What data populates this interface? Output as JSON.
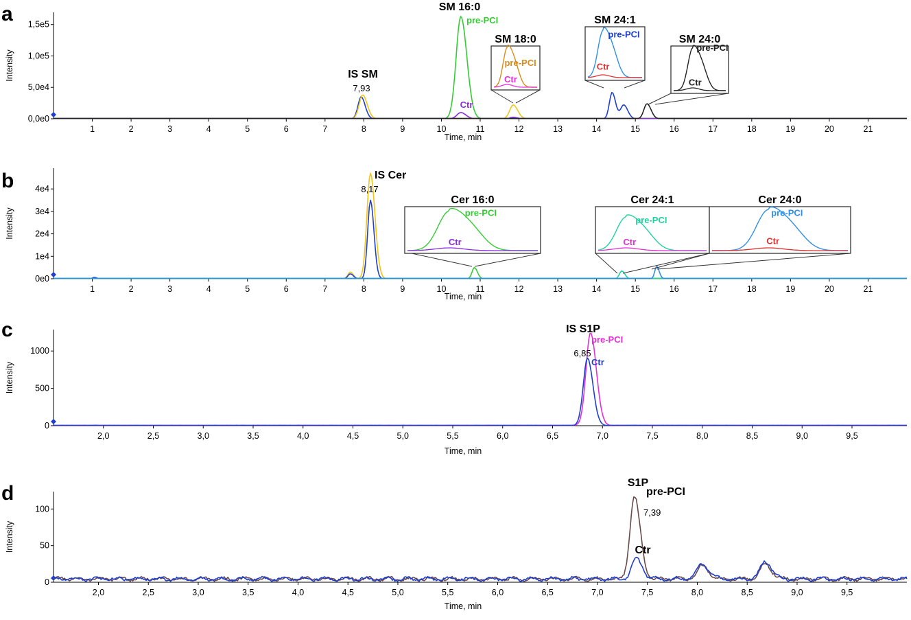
{
  "colors": {
    "blue": "#1f3fd0",
    "green": "#33cc33",
    "yellow": "#f0c419",
    "purple": "#8a2be2",
    "orange": "#d98c1a",
    "pink": "#e52fd5",
    "red": "#e03030",
    "sky": "#2e8fe8",
    "mint": "#22d1a0",
    "black": "#222222",
    "brown": "#6b4a4a"
  },
  "chart_data": [
    {
      "type": "line",
      "panel": "a",
      "xlabel": "Time, min",
      "ylabel": "Intensity",
      "xlim": [
        0,
        22
      ],
      "ylim": [
        0,
        165000
      ],
      "xticks": [
        "1",
        "2",
        "3",
        "4",
        "5",
        "6",
        "7",
        "8",
        "9",
        "10",
        "11",
        "12",
        "13",
        "14",
        "15",
        "16",
        "17",
        "18",
        "19",
        "20",
        "21"
      ],
      "yticks": [
        {
          "v": 0,
          "label": "0,0e0"
        },
        {
          "v": 50000,
          "label": "5,0e4"
        },
        {
          "v": 100000,
          "label": "1,0e5"
        },
        {
          "v": 150000,
          "label": "1,5e5"
        }
      ],
      "annotations": [
        {
          "text": "IS SM",
          "x": 7.93,
          "kind": "peak"
        },
        {
          "text": "7,93",
          "x": 7.93,
          "kind": "rt"
        },
        {
          "text": "SM 16:0",
          "x": 10.5,
          "kind": "peak"
        },
        {
          "text": "pre-PCI",
          "x": 10.5,
          "kind": "green"
        },
        {
          "text": "Ctr",
          "x": 10.5,
          "kind": "purple"
        },
        {
          "text": "SM 18:0",
          "x": 11.85,
          "kind": "peak"
        },
        {
          "text": "SM 24:1",
          "x": 14.5,
          "kind": "peak"
        },
        {
          "text": "SM 24:0",
          "x": 15.3,
          "kind": "peak"
        }
      ],
      "insets": [
        {
          "title": "SM 18:0",
          "labels": [
            "pre-PCI",
            "Ctr"
          ]
        },
        {
          "title": "SM 24:1",
          "labels": [
            "pre-PCI",
            "Ctr"
          ]
        },
        {
          "title": "SM 24:0",
          "labels": [
            "pre-PCI",
            "Ctr"
          ]
        }
      ],
      "series": [
        {
          "color": "blue",
          "peaks": [
            [
              7.93,
              35000,
              0.08
            ],
            [
              14.4,
              42000,
              0.07
            ],
            [
              14.7,
              22000,
              0.08
            ]
          ]
        },
        {
          "color": "yellow",
          "peaks": [
            [
              7.97,
              38000,
              0.09
            ],
            [
              11.85,
              22000,
              0.09
            ]
          ]
        },
        {
          "color": "green",
          "peaks": [
            [
              10.5,
              163000,
              0.12
            ]
          ]
        },
        {
          "color": "purple",
          "peaks": [
            [
              10.5,
              10000,
              0.1
            ],
            [
              11.85,
              2500,
              0.08
            ]
          ]
        },
        {
          "color": "black",
          "peaks": [
            [
              15.3,
              24000,
              0.08
            ]
          ]
        }
      ]
    },
    {
      "type": "line",
      "panel": "b",
      "xlabel": "Time, min",
      "ylabel": "Intensity",
      "xlim": [
        0,
        22
      ],
      "ylim": [
        0,
        48000
      ],
      "xticks": [
        "1",
        "2",
        "3",
        "4",
        "5",
        "6",
        "7",
        "8",
        "9",
        "10",
        "11",
        "12",
        "13",
        "14",
        "15",
        "16",
        "17",
        "18",
        "19",
        "20",
        "21"
      ],
      "yticks": [
        {
          "v": 0,
          "label": "0e0"
        },
        {
          "v": 10000,
          "label": "1e4"
        },
        {
          "v": 20000,
          "label": "2e4"
        },
        {
          "v": 30000,
          "label": "3e4"
        },
        {
          "v": 40000,
          "label": "4e4"
        }
      ],
      "annotations": [
        {
          "text": "IS Cer",
          "x": 8.17,
          "kind": "peak"
        },
        {
          "text": "8,17",
          "x": 8.17,
          "kind": "rt"
        }
      ],
      "insets": [
        {
          "title": "Cer 16:0",
          "labels": [
            "pre-PCI",
            "Ctr"
          ]
        },
        {
          "title": "Cer 24:1",
          "labels": [
            "pre-PCI",
            "Ctr"
          ]
        },
        {
          "title": "Cer 24:0",
          "labels": [
            "pre-PCI",
            "Ctr"
          ]
        }
      ],
      "series": [
        {
          "color": "yellow",
          "peaks": [
            [
              8.17,
              47000,
              0.09
            ],
            [
              7.65,
              3000,
              0.06
            ]
          ]
        },
        {
          "color": "blue",
          "peaks": [
            [
              8.17,
              35000,
              0.07
            ],
            [
              7.65,
              2200,
              0.06
            ],
            [
              1.05,
              600,
              0.05
            ]
          ]
        },
        {
          "color": "green",
          "peaks": [
            [
              10.85,
              5000,
              0.06
            ]
          ]
        },
        {
          "color": "mint",
          "peaks": [
            [
              14.65,
              3500,
              0.06
            ]
          ]
        },
        {
          "color": "sky",
          "peaks": [
            [
              15.55,
              5500,
              0.05
            ]
          ]
        }
      ]
    },
    {
      "type": "line",
      "panel": "c",
      "xlabel": "Time, min",
      "ylabel": "Intensity",
      "xlim": [
        1.5,
        10.05
      ],
      "ylim": [
        0,
        1250
      ],
      "xticks": [
        "2,0",
        "2,5",
        "3,0",
        "3,5",
        "4,0",
        "4,5",
        "5,0",
        "5,5",
        "6,0",
        "6,5",
        "7,0",
        "7,5",
        "8,0",
        "8,5",
        "9,0",
        "9,5"
      ],
      "yticks": [
        {
          "v": 0,
          "label": "0"
        },
        {
          "v": 500,
          "label": "500"
        },
        {
          "v": 1000,
          "label": "1000"
        }
      ],
      "annotations": [
        {
          "text": "IS S1P",
          "x": 6.85,
          "kind": "peak"
        },
        {
          "text": "6,85",
          "x": 6.85,
          "kind": "rt"
        },
        {
          "text": "pre-PCI",
          "x": 6.88,
          "kind": "pink"
        },
        {
          "text": "Ctr",
          "x": 6.85,
          "kind": "blue"
        }
      ],
      "series": [
        {
          "color": "pink",
          "peaks": [
            [
              6.88,
              1240,
              0.045
            ]
          ]
        },
        {
          "color": "blue",
          "peaks": [
            [
              6.85,
              900,
              0.042
            ]
          ]
        }
      ]
    },
    {
      "type": "line",
      "panel": "d",
      "xlabel": "Time, min",
      "ylabel": "Intensity",
      "xlim": [
        1.55,
        10.1
      ],
      "ylim": [
        0,
        120
      ],
      "xticks": [
        "2,0",
        "2,5",
        "3,0",
        "3,5",
        "4,0",
        "4,5",
        "5,0",
        "5,5",
        "6,0",
        "6,5",
        "7,0",
        "7,5",
        "8,0",
        "8,5",
        "9,0",
        "9,5"
      ],
      "yticks": [
        {
          "v": 0,
          "label": "0"
        },
        {
          "v": 50,
          "label": "50"
        },
        {
          "v": 100,
          "label": "100"
        }
      ],
      "annotations": [
        {
          "text": "S1P",
          "x": 7.39,
          "kind": "peak"
        },
        {
          "text": "pre-PCI",
          "x": 7.39,
          "kind": "brown"
        },
        {
          "text": "7,39",
          "x": 7.39,
          "kind": "rt"
        },
        {
          "text": "Ctr",
          "x": 7.39,
          "kind": "sky"
        }
      ],
      "series": [
        {
          "color": "brown",
          "peaks": [
            [
              7.37,
              112,
              0.045
            ],
            [
              8.05,
              18,
              0.05
            ],
            [
              8.68,
              20,
              0.05
            ]
          ]
        },
        {
          "color": "blue",
          "peaks": [
            [
              7.39,
              28,
              0.045
            ],
            [
              8.05,
              20,
              0.05
            ],
            [
              8.68,
              24,
              0.05
            ]
          ]
        }
      ]
    }
  ]
}
